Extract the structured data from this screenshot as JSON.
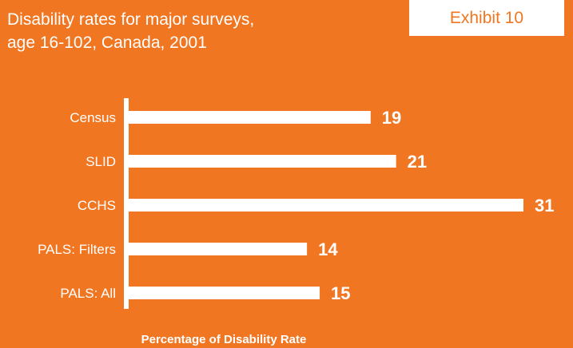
{
  "header": {
    "title_line1": "Disability rates for major surveys,",
    "title_line2": "age 16-102, Canada, 2001",
    "exhibit_label": "Exhibit 10"
  },
  "colors": {
    "background": "#f07622",
    "bar": "#ffffff",
    "text": "#ffffff"
  },
  "chart_data": {
    "type": "bar",
    "orientation": "horizontal",
    "title": "Disability rates for major surveys, age 16-102, Canada, 2001",
    "categories": [
      "Census",
      "SLID",
      "CCHS",
      "PALS: Filters",
      "PALS: All"
    ],
    "values": [
      19,
      21,
      31,
      14,
      15
    ],
    "xlabel": "Percentage of Disability Rate",
    "ylabel": "",
    "xlim": [
      0,
      31
    ],
    "grid": false,
    "legend": "none"
  }
}
